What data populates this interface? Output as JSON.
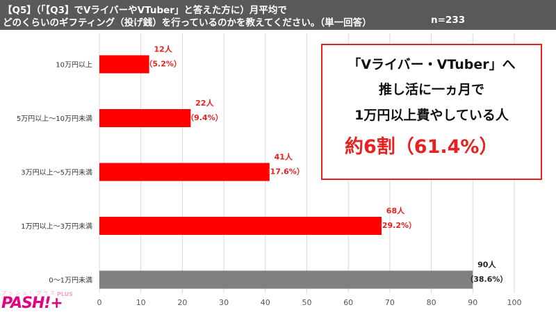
{
  "header": {
    "line1": "【Q5】（「【Q3】でVライバーやVTuber」と答えた方に）月平均で",
    "line2": "どのくらいのギフティング（投げ銭）を行っているのかを教えてください。（単一回答）",
    "n": "n=233"
  },
  "callout": {
    "line1": "「Vライバー・VTuber」へ",
    "line2": "推し活に一ヵ月で",
    "line3": "1万円以上費やしている人",
    "line4": "約6割（61.4%）"
  },
  "logo": {
    "kana": "プッシュ！プラス",
    "main": "PASH!+",
    "plus": "PLUS"
  },
  "chart_data": {
    "type": "bar",
    "orientation": "horizontal",
    "categories": [
      "10万円以上",
      "5万円以上〜10万円未満",
      "3万円以上〜5万円未満",
      "1万円以上〜3万円未満",
      "0〜1万円未満"
    ],
    "values": [
      12,
      22,
      41,
      68,
      90
    ],
    "count_labels": [
      "12人",
      "22人",
      "41人",
      "68人",
      "90人"
    ],
    "percent_labels": [
      "（5.2%）",
      "（9.4%）",
      "（17.6%）",
      "（29.2%）",
      "（38.6%）"
    ],
    "bar_colors": [
      "#ff0000",
      "#ff0000",
      "#ff0000",
      "#ff0000",
      "#808080"
    ],
    "label_colors": [
      "#e8201f",
      "#e8201f",
      "#e8201f",
      "#e8201f",
      "#222222"
    ],
    "xlim": [
      0,
      100
    ],
    "xticks": [
      0,
      10,
      20,
      30,
      40,
      50,
      60,
      70,
      80,
      90,
      100
    ],
    "grid": true
  }
}
